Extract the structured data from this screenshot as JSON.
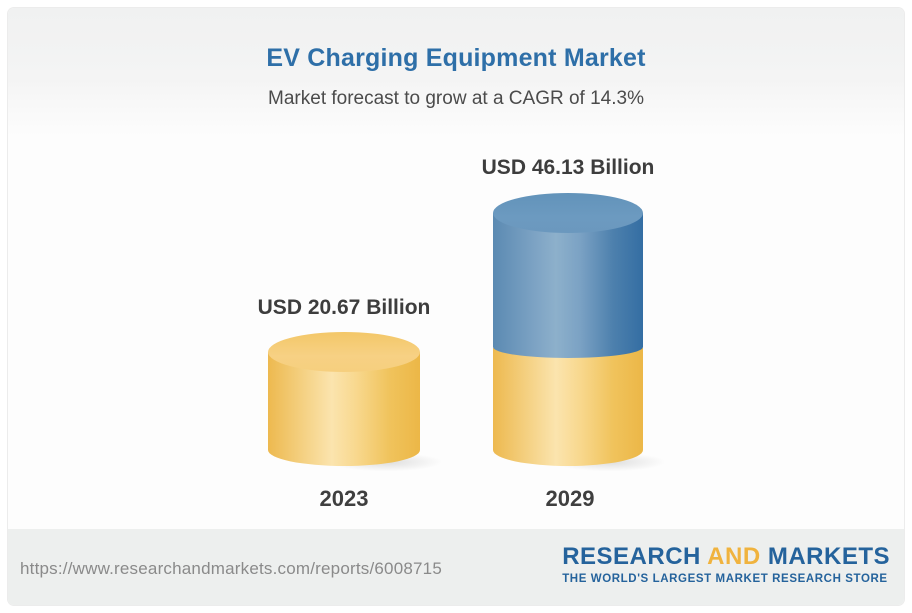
{
  "header": {
    "title": "EV Charging Equipment Market",
    "subtitle": "Market forecast to grow at a CAGR of 14.3%"
  },
  "chart_data": {
    "type": "bar",
    "style": "3d-cylinder",
    "title": "EV Charging Equipment Market",
    "subtitle": "Market forecast to grow at a CAGR of 14.3%",
    "unit": "USD Billion",
    "cagr_percent": 14.3,
    "categories": [
      "2023",
      "2029"
    ],
    "values": [
      20.67,
      46.13
    ],
    "bars": [
      {
        "category": "2023",
        "value": 20.67,
        "value_label": "USD 20.67 Billion",
        "segments": [
          {
            "name": "2023-base",
            "color": "#f4c863",
            "value": 20.67
          }
        ]
      },
      {
        "category": "2029",
        "value": 46.13,
        "value_label": "USD 46.13 Billion",
        "segments": [
          {
            "name": "2023-base",
            "color": "#f4c863",
            "value": 20.67
          },
          {
            "name": "forecast-growth",
            "color": "#5d8db7",
            "value": 25.46
          }
        ]
      }
    ],
    "legend": "none",
    "axes": "none",
    "grid": false
  },
  "footer": {
    "url": "https://www.researchandmarkets.com/reports/6008715",
    "logo": {
      "word1": "RESEARCH",
      "word2": "AND",
      "word3": "MARKETS",
      "tagline": "THE WORLD'S LARGEST MARKET RESEARCH STORE"
    }
  },
  "colors": {
    "title_blue": "#2e6fa8",
    "text_dark": "#3f3f3f",
    "bar_yellow": "#f4c863",
    "bar_blue": "#5d8db7",
    "logo_blue": "#25639c",
    "logo_gold": "#f0b33e",
    "footer_bg": "#edefee",
    "url_gray": "#8a8a8a"
  }
}
